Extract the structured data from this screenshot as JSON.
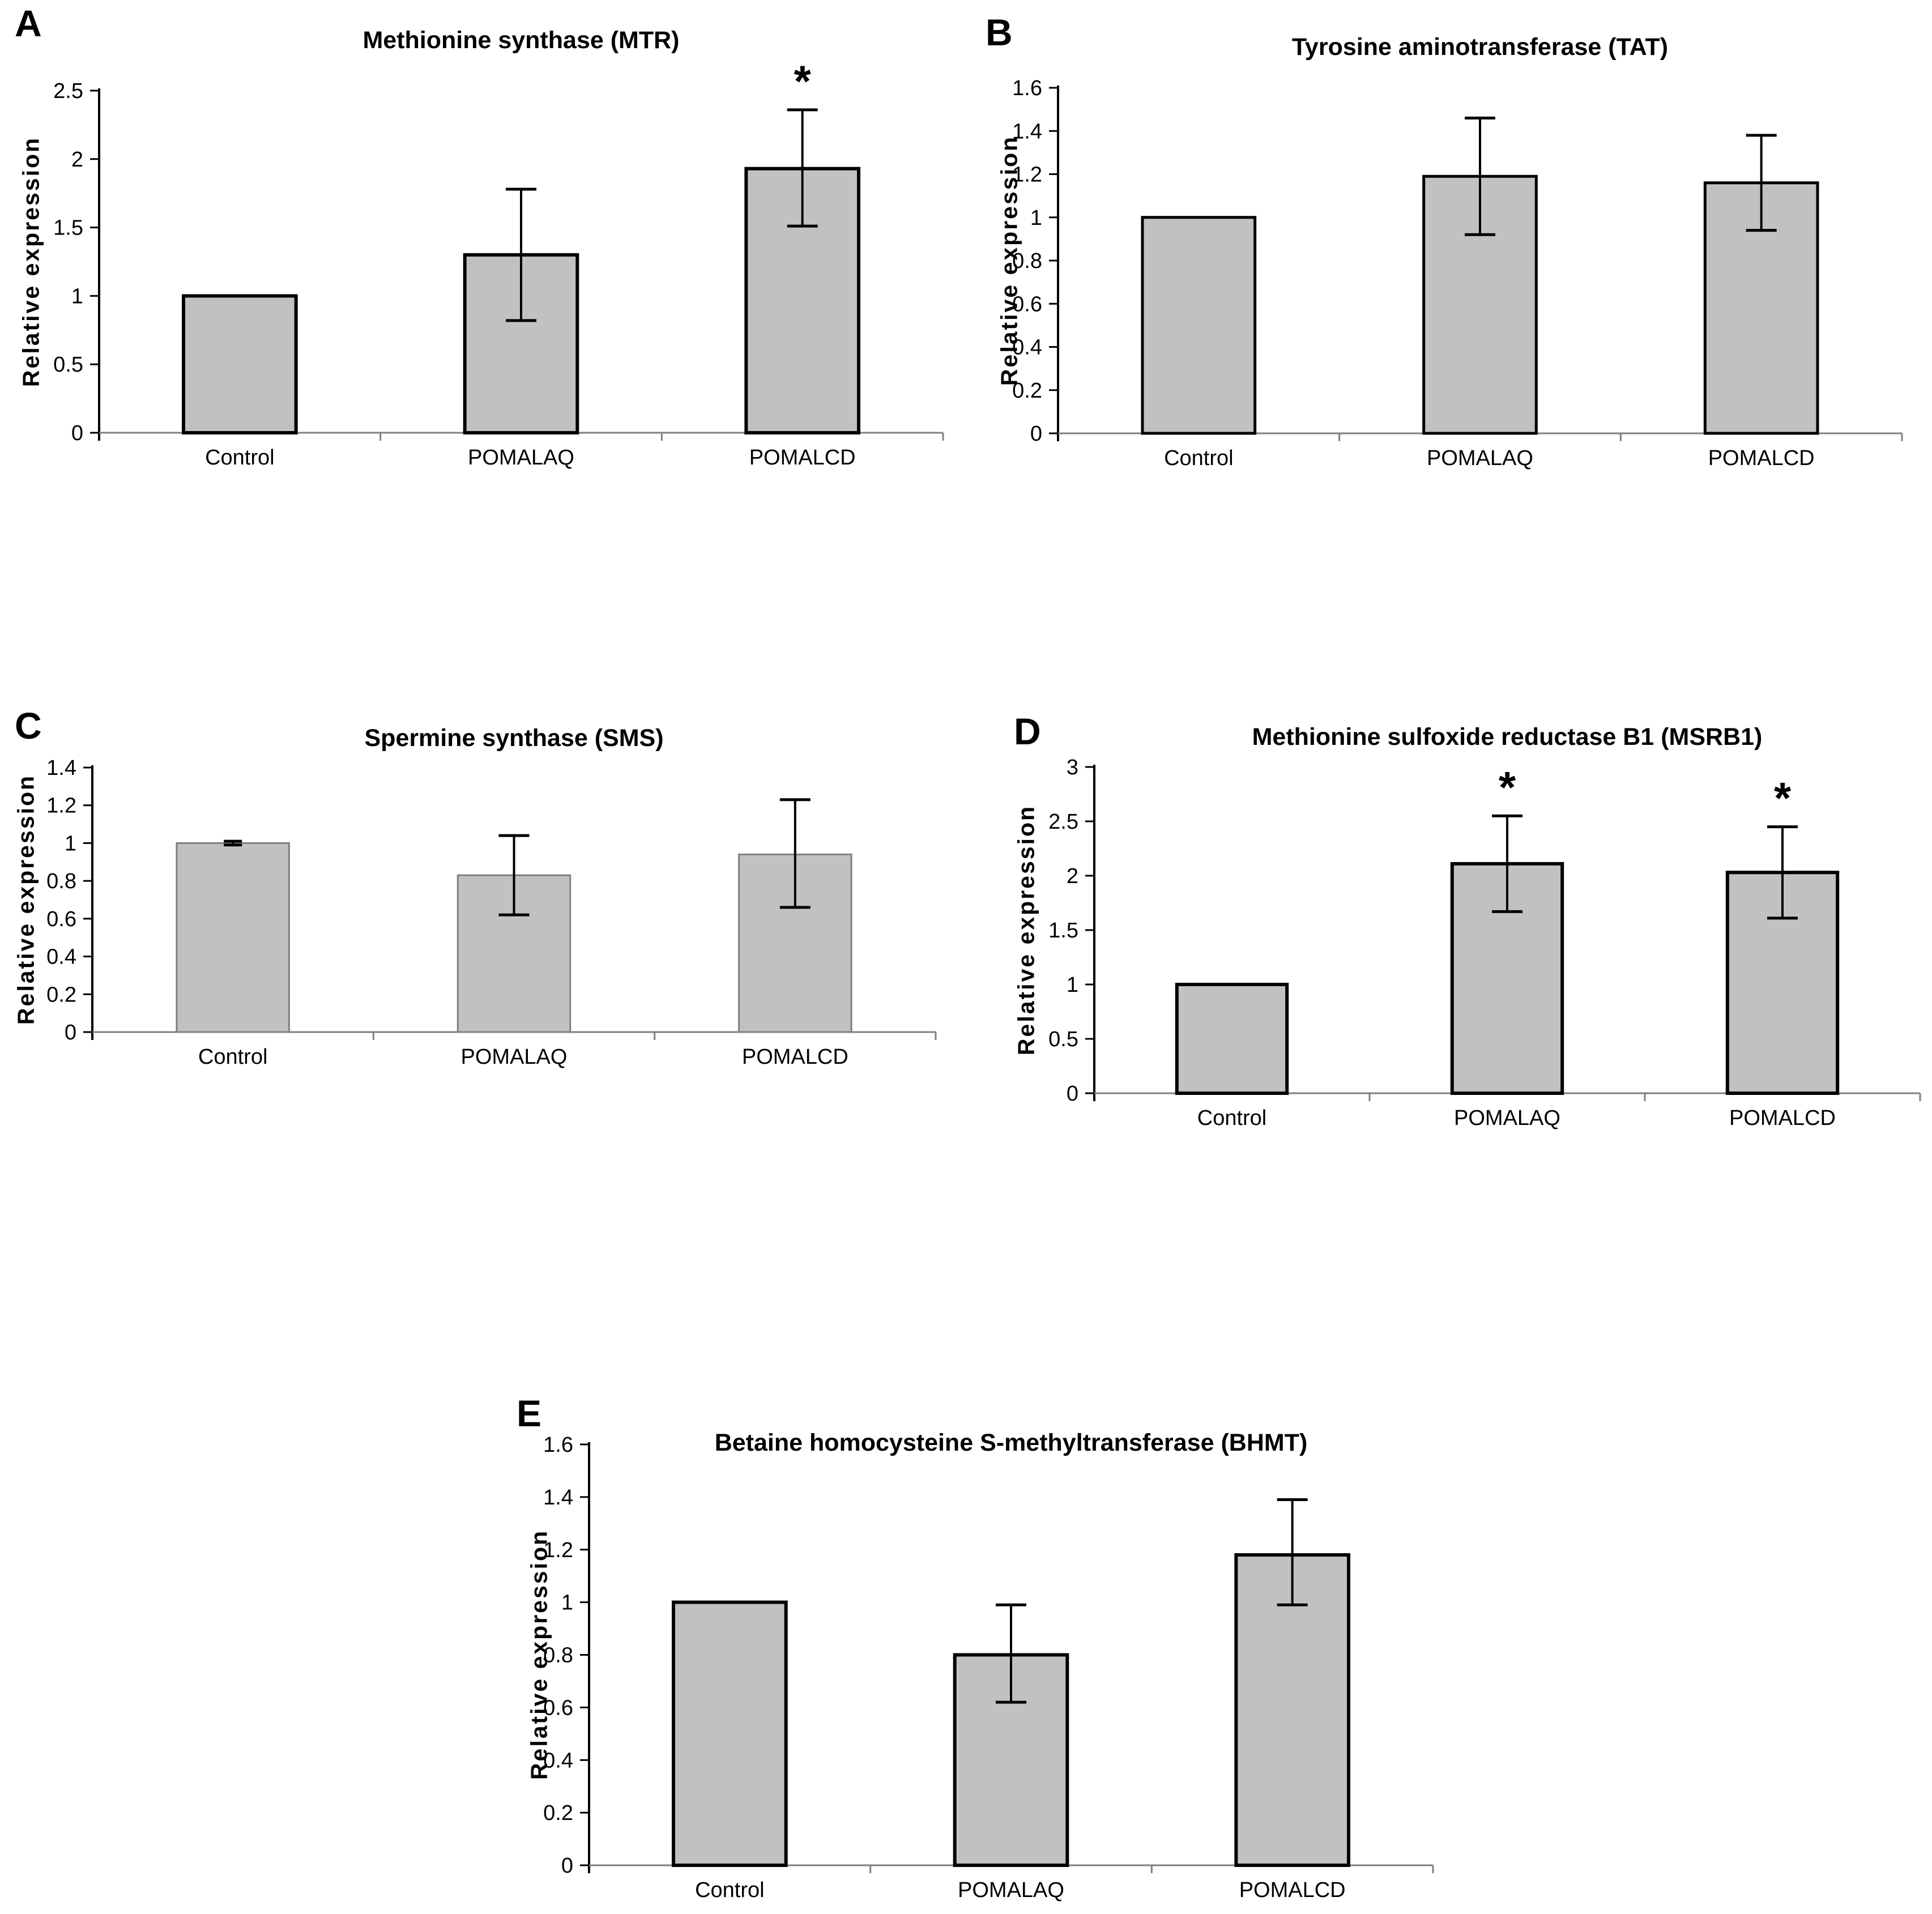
{
  "figure": {
    "background": "#ffffff",
    "colors": {
      "bar_fill": "#c1c1c1",
      "bar_stroke": "#000000",
      "bar_stroke_panel_c": "#808080",
      "axis": "#000000",
      "baseline": "#7f7f7f",
      "error_bar": "#000000",
      "text": "#000000"
    }
  },
  "chart_data": [
    {
      "id": "A",
      "panel_letter": "A",
      "type": "bar",
      "title": "Methionine synthase (MTR)",
      "ylabel": "Relative expression",
      "xlabel": "",
      "categories": [
        "Control",
        "POMALAQ",
        "POMALCD"
      ],
      "values": [
        1.0,
        1.3,
        1.93
      ],
      "errors": [
        null,
        [
          0.82,
          1.78
        ],
        [
          1.51,
          2.36
        ]
      ],
      "significant": [
        false,
        false,
        true
      ],
      "significance_marker": "*",
      "ylim": [
        0,
        2.5
      ],
      "ytick_labels": [
        "0",
        "0.5",
        "1",
        "1.5",
        "2",
        "2.5"
      ],
      "grid": "off",
      "legend": "none"
    },
    {
      "id": "B",
      "panel_letter": "B",
      "type": "bar",
      "title": "Tyrosine aminotransferase (TAT)",
      "ylabel": "Relative expression",
      "xlabel": "",
      "categories": [
        "Control",
        "POMALAQ",
        "POMALCD"
      ],
      "values": [
        1.0,
        1.19,
        1.16
      ],
      "errors": [
        null,
        [
          0.92,
          1.46
        ],
        [
          0.94,
          1.38
        ]
      ],
      "significant": [
        false,
        false,
        false
      ],
      "significance_marker": "*",
      "ylim": [
        0,
        1.6
      ],
      "ytick_labels": [
        "0",
        "0.2",
        "0.4",
        "0.6",
        "0.8",
        "1",
        "1.2",
        "1.4",
        "1.6"
      ],
      "grid": "off",
      "legend": "none"
    },
    {
      "id": "C",
      "panel_letter": "C",
      "type": "bar",
      "title": "Spermine synthase (SMS)",
      "ylabel": "Relative expression",
      "xlabel": "",
      "categories": [
        "Control",
        "POMALAQ",
        "POMALCD"
      ],
      "values": [
        1.0,
        0.83,
        0.94
      ],
      "errors": [
        [
          0.99,
          1.01
        ],
        [
          0.62,
          1.04
        ],
        [
          0.66,
          1.23
        ]
      ],
      "significant": [
        false,
        false,
        false
      ],
      "significance_marker": "*",
      "ylim": [
        0,
        1.4
      ],
      "ytick_labels": [
        "0",
        "0.2",
        "0.4",
        "0.6",
        "0.8",
        "1",
        "1.2",
        "1.4"
      ],
      "grid": "off",
      "legend": "none"
    },
    {
      "id": "D",
      "panel_letter": "D",
      "type": "bar",
      "title": "Methionine sulfoxide reductase B1 (MSRB1)",
      "ylabel": "Relative expression",
      "xlabel": "",
      "categories": [
        "Control",
        "POMALAQ",
        "POMALCD"
      ],
      "values": [
        1.0,
        2.11,
        2.03
      ],
      "errors": [
        null,
        [
          1.67,
          2.55
        ],
        [
          1.61,
          2.45
        ]
      ],
      "significant": [
        false,
        true,
        true
      ],
      "significance_marker": "*",
      "ylim": [
        0,
        3
      ],
      "ytick_labels": [
        "0",
        "0.5",
        "1",
        "1.5",
        "2",
        "2.5",
        "3"
      ],
      "grid": "off",
      "legend": "none"
    },
    {
      "id": "E",
      "panel_letter": "E",
      "type": "bar",
      "title": "Betaine homocysteine S-methyltransferase (BHMT)",
      "ylabel": "Relative expression",
      "xlabel": "",
      "categories": [
        "Control",
        "POMALAQ",
        "POMALCD"
      ],
      "values": [
        1.0,
        0.8,
        1.18
      ],
      "errors": [
        null,
        [
          0.62,
          0.99
        ],
        [
          0.99,
          1.39
        ]
      ],
      "significant": [
        false,
        false,
        false
      ],
      "significance_marker": "*",
      "ylim": [
        0,
        1.6
      ],
      "ytick_labels": [
        "0",
        "0.2",
        "0.4",
        "0.6",
        "0.8",
        "1",
        "1.2",
        "1.4",
        "1.6"
      ],
      "grid": "off",
      "legend": "none"
    }
  ]
}
